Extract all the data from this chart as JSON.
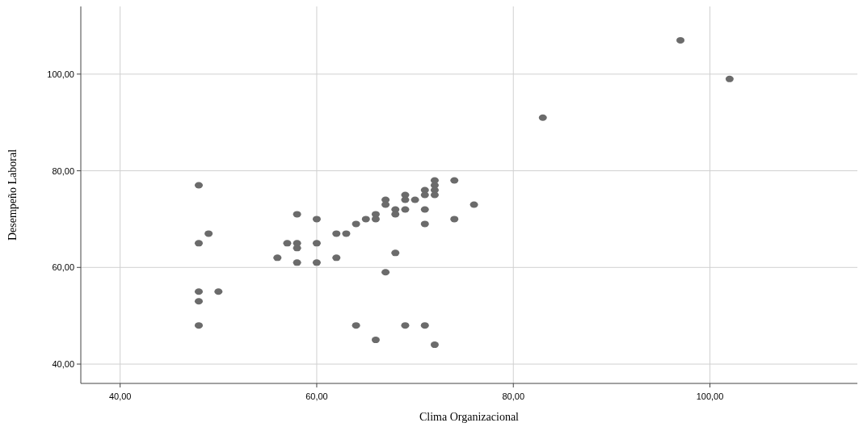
{
  "chart_data": {
    "type": "scatter",
    "xlabel": "Clima Organizacional",
    "ylabel": "Desempeño Laboral",
    "xlim": [
      36,
      115
    ],
    "ylim": [
      36,
      114
    ],
    "xticks": [
      {
        "value": 40,
        "label": "40,00"
      },
      {
        "value": 60,
        "label": "60,00"
      },
      {
        "value": 80,
        "label": "80,00"
      },
      {
        "value": 100,
        "label": "100,00"
      }
    ],
    "yticks": [
      {
        "value": 40,
        "label": "40,00"
      },
      {
        "value": 60,
        "label": "60,00"
      },
      {
        "value": 80,
        "label": "80,00"
      },
      {
        "value": 100,
        "label": "100,00"
      }
    ],
    "grid": true,
    "marker": "circle",
    "series": [
      {
        "color": "#6b6b6b",
        "x": [
          48,
          48,
          49,
          48,
          50,
          48,
          48,
          56,
          57,
          58,
          58,
          58,
          58,
          60,
          60,
          60,
          62,
          63,
          62,
          64,
          65,
          66,
          66,
          67,
          67,
          68,
          68,
          69,
          69,
          69,
          70,
          71,
          71,
          71,
          71,
          72,
          72,
          72,
          72,
          74,
          74,
          76,
          68,
          67,
          64,
          66,
          69,
          71,
          72,
          83,
          97,
          102
        ],
        "values": [
          77,
          65,
          67,
          55,
          55,
          53,
          48,
          62,
          65,
          71,
          65,
          64,
          61,
          70,
          65,
          61,
          67,
          67,
          62,
          69,
          70,
          71,
          70,
          74,
          73,
          72,
          71,
          75,
          74,
          72,
          74,
          76,
          75,
          72,
          69,
          78,
          77,
          76,
          75,
          78,
          70,
          73,
          63,
          59,
          48,
          45,
          48,
          48,
          44,
          91,
          107,
          99
        ]
      }
    ]
  }
}
